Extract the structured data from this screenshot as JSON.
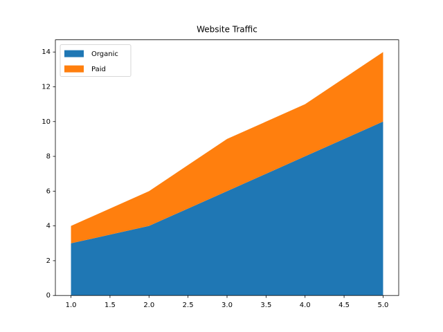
{
  "chart_data": {
    "type": "stacked_area",
    "title": "Website Traffic",
    "x": [
      1,
      2,
      3,
      4,
      5
    ],
    "series": [
      {
        "name": "Organic",
        "color": "#1f77b4",
        "values": [
          3,
          4,
          6,
          8,
          10
        ]
      },
      {
        "name": "Paid",
        "color": "#ff7f0e",
        "values": [
          1,
          2,
          3,
          3,
          4
        ]
      }
    ],
    "xlim": [
      0.8,
      5.2
    ],
    "xticks": [
      {
        "value": 1,
        "label": "1.0"
      },
      {
        "value": 1.5,
        "label": "1.5"
      },
      {
        "value": 2,
        "label": "2.0"
      },
      {
        "value": 2.5,
        "label": "2.5"
      },
      {
        "value": 3,
        "label": "3.0"
      },
      {
        "value": 3.5,
        "label": "3.5"
      },
      {
        "value": 4,
        "label": "4.0"
      },
      {
        "value": 4.5,
        "label": "4.5"
      },
      {
        "value": 5,
        "label": "5.0"
      }
    ],
    "ylim": [
      0,
      14.7
    ],
    "yticks": [
      0,
      2,
      4,
      6,
      8,
      10,
      12,
      14
    ],
    "grid": false,
    "legend": "upper left"
  }
}
